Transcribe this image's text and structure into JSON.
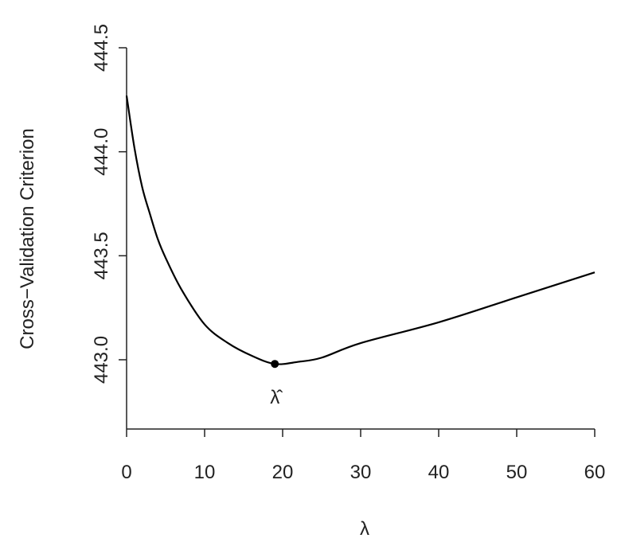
{
  "chart_data": {
    "type": "line",
    "x_label": "λ",
    "y_label": "Cross−Validation Criterion",
    "x": [
      0,
      1,
      2,
      3,
      4,
      5,
      7,
      10,
      13,
      16,
      19,
      22,
      25,
      30,
      40,
      50,
      60
    ],
    "values": [
      444.27,
      444.02,
      443.83,
      443.7,
      443.58,
      443.49,
      443.34,
      443.17,
      443.08,
      443.02,
      442.98,
      442.99,
      443.01,
      443.08,
      443.18,
      443.3,
      443.42
    ],
    "color": "#000000",
    "xlim": [
      0,
      60
    ],
    "xticks": [
      0,
      10,
      20,
      30,
      40,
      50,
      60
    ],
    "ylim": [
      442.667,
      444.5
    ],
    "yticks": [
      {
        "value": 443,
        "label": "443.0"
      },
      {
        "value": 443.5,
        "label": "443.5"
      },
      {
        "value": 444,
        "label": "444.0"
      },
      {
        "value": 444.5,
        "label": "444.5"
      }
    ],
    "annotation": {
      "x": 19,
      "y": 442.98,
      "label": "λ̂"
    },
    "grid": false
  }
}
